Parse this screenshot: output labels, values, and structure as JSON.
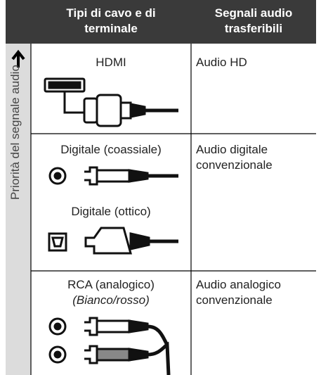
{
  "header": {
    "col1": [
      "Tipi di cavo e di",
      "terminale"
    ],
    "col2": [
      "Segnali audio",
      "trasferibili"
    ]
  },
  "side_label": "Priorità del segnale audio",
  "rows": [
    {
      "cables": [
        "HDMI"
      ],
      "signal": [
        "Audio HD"
      ]
    },
    {
      "cables": [
        "Digitale (coassiale)",
        "Digitale (ottico)"
      ],
      "signal": [
        "Audio digitale",
        "convenzionale"
      ]
    },
    {
      "cables": [
        "RCA (analogico)"
      ],
      "note": "(Bianco/rosso)",
      "signal": [
        "Audio analogico",
        "convenzionale"
      ]
    }
  ]
}
